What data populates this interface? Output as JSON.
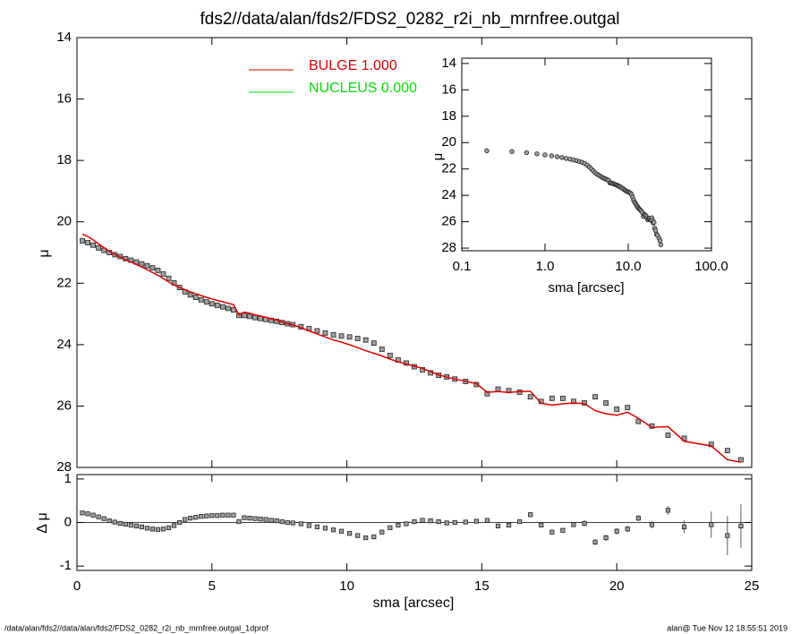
{
  "chart_data": [
    {
      "type": "scatter",
      "title": "fds2//data/alan/fds2/FDS2_0282_r2i_nb_mrnfree.outgal",
      "ylabel": "μ",
      "x": [
        0.2,
        0.4,
        0.6,
        0.8,
        1.0,
        1.2,
        1.4,
        1.6,
        1.8,
        2.0,
        2.2,
        2.4,
        2.6,
        2.8,
        3.0,
        3.2,
        3.4,
        3.6,
        3.8,
        4.0,
        4.2,
        4.4,
        4.6,
        4.8,
        5.0,
        5.2,
        5.4,
        5.6,
        5.8,
        6.0,
        6.2,
        6.4,
        6.6,
        6.8,
        7.0,
        7.2,
        7.4,
        7.6,
        7.8,
        8.0,
        8.3,
        8.6,
        8.9,
        9.2,
        9.5,
        9.8,
        10.1,
        10.4,
        10.7,
        11.0,
        11.3,
        11.6,
        11.9,
        12.2,
        12.5,
        12.8,
        13.1,
        13.4,
        13.7,
        14.0,
        14.4,
        14.8,
        15.2,
        15.6,
        16.0,
        16.4,
        16.8,
        17.2,
        17.6,
        18.0,
        18.4,
        18.8,
        19.2,
        19.6,
        20.0,
        20.4,
        20.8,
        21.3,
        21.9,
        22.5,
        23.5,
        24.1,
        24.6
      ],
      "series": [
        {
          "color": "#a0a0a0",
          "values": [
            20.62,
            20.68,
            20.76,
            20.85,
            20.93,
            21.0,
            21.07,
            21.13,
            21.2,
            21.25,
            21.31,
            21.37,
            21.43,
            21.5,
            21.58,
            21.7,
            21.84,
            21.99,
            22.14,
            22.28,
            22.38,
            22.46,
            22.54,
            22.61,
            22.67,
            22.72,
            22.77,
            22.82,
            22.87,
            23.05,
            23.05,
            23.08,
            23.12,
            23.15,
            23.18,
            23.21,
            23.24,
            23.28,
            23.32,
            23.35,
            23.42,
            23.48,
            23.55,
            23.62,
            23.68,
            23.72,
            23.75,
            23.8,
            23.85,
            23.95,
            24.15,
            24.35,
            24.5,
            24.6,
            24.72,
            24.82,
            24.92,
            25.0,
            25.05,
            25.12,
            25.2,
            25.3,
            25.6,
            25.45,
            25.5,
            25.55,
            25.7,
            25.85,
            25.75,
            25.75,
            25.85,
            25.9,
            25.7,
            25.9,
            26.1,
            26.05,
            26.5,
            26.65,
            26.95,
            27.05,
            27.25,
            27.45,
            27.75
          ]
        },
        {
          "name": "BULGE  1.000",
          "color": "#e00000",
          "values": [
            20.4,
            20.48,
            20.59,
            20.72,
            20.84,
            20.96,
            21.06,
            21.15,
            21.24,
            21.31,
            21.39,
            21.47,
            21.56,
            21.65,
            21.74,
            21.85,
            21.96,
            22.06,
            22.14,
            22.21,
            22.28,
            22.34,
            22.4,
            22.46,
            22.51,
            22.56,
            22.6,
            22.65,
            22.7,
            23.03,
            22.94,
            22.98,
            23.03,
            23.07,
            23.11,
            23.16,
            23.2,
            23.26,
            23.32,
            23.36,
            23.45,
            23.55,
            23.65,
            23.75,
            23.85,
            23.92,
            24.0,
            24.1,
            24.2,
            24.28,
            24.37,
            24.47,
            24.56,
            24.63,
            24.7,
            24.77,
            24.88,
            24.98,
            25.06,
            25.12,
            25.19,
            25.27,
            25.55,
            25.53,
            25.56,
            25.53,
            25.52,
            25.91,
            25.97,
            25.93,
            25.9,
            25.92,
            26.15,
            26.25,
            26.3,
            26.2,
            26.4,
            26.7,
            26.67,
            27.15,
            27.3,
            27.75,
            27.83
          ]
        },
        {
          "name": "NUCLEUS  0.000",
          "color": "#00e000"
        }
      ],
      "xlim": [
        0,
        25
      ],
      "xticks": [
        0,
        5,
        10,
        15,
        20,
        25
      ],
      "ylim": [
        28,
        14
      ],
      "yticks": [
        14,
        16,
        18,
        20,
        22,
        24,
        26,
        28
      ]
    },
    {
      "type": "scatter",
      "xlabel": "sma [arcsec]",
      "ylabel": "μ",
      "xscale": "log",
      "xlim": [
        0.1,
        100
      ],
      "xticks": [
        0.1,
        {
          "value": 1,
          "label": "1.0"
        },
        {
          "value": 10,
          "label": "10.0"
        },
        {
          "value": 100,
          "label": "100.0"
        }
      ],
      "ylim": [
        28.2,
        13.6
      ],
      "yticks": [
        14,
        16,
        18,
        20,
        22,
        24,
        26,
        28
      ]
    },
    {
      "type": "errorbar",
      "xlabel": "sma [arcsec]",
      "ylabel": "Δ μ",
      "values": [
        0.22,
        0.2,
        0.17,
        0.13,
        0.09,
        0.04,
        0.01,
        -0.02,
        -0.04,
        -0.06,
        -0.08,
        -0.1,
        -0.13,
        -0.15,
        -0.16,
        -0.15,
        -0.12,
        -0.07,
        0,
        0.07,
        0.1,
        0.12,
        0.14,
        0.15,
        0.16,
        0.16,
        0.17,
        0.17,
        0.17,
        0.02,
        0.11,
        0.1,
        0.09,
        0.08,
        0.07,
        0.05,
        0.04,
        0.02,
        0,
        -0.01,
        -0.03,
        -0.07,
        -0.1,
        -0.13,
        -0.17,
        -0.2,
        -0.25,
        -0.3,
        -0.35,
        -0.33,
        -0.22,
        -0.12,
        -0.06,
        -0.03,
        0.02,
        0.05,
        0.04,
        0.02,
        -0.01,
        0,
        0.01,
        0.03,
        0.05,
        -0.08,
        -0.06,
        0.02,
        0.18,
        -0.06,
        -0.22,
        -0.18,
        -0.05,
        -0.02,
        -0.45,
        -0.35,
        -0.2,
        -0.15,
        0.1,
        -0.05,
        0.28,
        -0.1,
        -0.05,
        -0.3,
        -0.08
      ],
      "errors": [
        0.02,
        0.02,
        0.02,
        0.02,
        0.02,
        0.02,
        0.02,
        0.02,
        0.02,
        0.02,
        0.02,
        0.02,
        0.02,
        0.02,
        0.02,
        0.02,
        0.02,
        0.02,
        0.02,
        0.02,
        0.02,
        0.02,
        0.02,
        0.02,
        0.02,
        0.02,
        0.02,
        0.02,
        0.02,
        0.02,
        0.02,
        0.02,
        0.02,
        0.02,
        0.02,
        0.02,
        0.02,
        0.02,
        0.02,
        0.02,
        0.03,
        0.03,
        0.03,
        0.03,
        0.03,
        0.03,
        0.03,
        0.03,
        0.03,
        0.03,
        0.03,
        0.03,
        0.03,
        0.03,
        0.03,
        0.03,
        0.03,
        0.03,
        0.03,
        0.03,
        0.05,
        0.05,
        0.05,
        0.05,
        0.05,
        0.05,
        0.05,
        0.05,
        0.05,
        0.05,
        0.05,
        0.07,
        0.07,
        0.07,
        0.07,
        0.07,
        0.07,
        0.08,
        0.1,
        0.15,
        0.3,
        0.45,
        0.5
      ],
      "hline": 0,
      "xlim": [
        0,
        25
      ],
      "xticks": [
        0,
        5,
        10,
        15,
        20,
        25
      ],
      "ylim": [
        -1.1,
        1.1
      ],
      "yticks": [
        -1,
        0,
        1
      ]
    }
  ],
  "footer_left": "/data/alan/fds2//data/alan/fds2/FDS2_0282_r2i_nb_mrnfree.outgal_1dprof",
  "footer_right": "alan@  Tue Nov 12 18:55:51 2019"
}
